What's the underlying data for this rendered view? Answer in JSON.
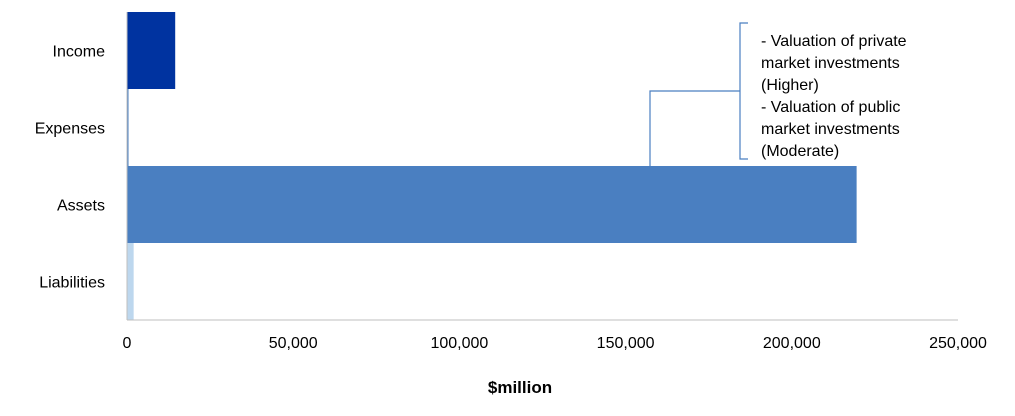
{
  "chart_data": {
    "type": "bar",
    "orientation": "horizontal",
    "categories": [
      "Income",
      "Expenses",
      "Assets",
      "Liabilities"
    ],
    "values": [
      14500,
      300,
      219500,
      2000
    ],
    "colors": [
      "#0033A0",
      "#4A7FC1",
      "#4A7FC1",
      "#BDD7EE"
    ],
    "xlabel": "$million",
    "xlim": [
      0,
      250000
    ],
    "xticks": [
      0,
      50000,
      100000,
      150000,
      200000,
      250000
    ],
    "xtick_labels": [
      "0",
      "50,000",
      "100,000",
      "150,000",
      "200,000",
      "250,000"
    ],
    "grid": false,
    "annotation": {
      "target": "Assets",
      "lines": [
        "- Valuation of private",
        "market investments",
        "(Higher)",
        "- Valuation of public",
        "market investments",
        "(Moderate)"
      ]
    }
  }
}
